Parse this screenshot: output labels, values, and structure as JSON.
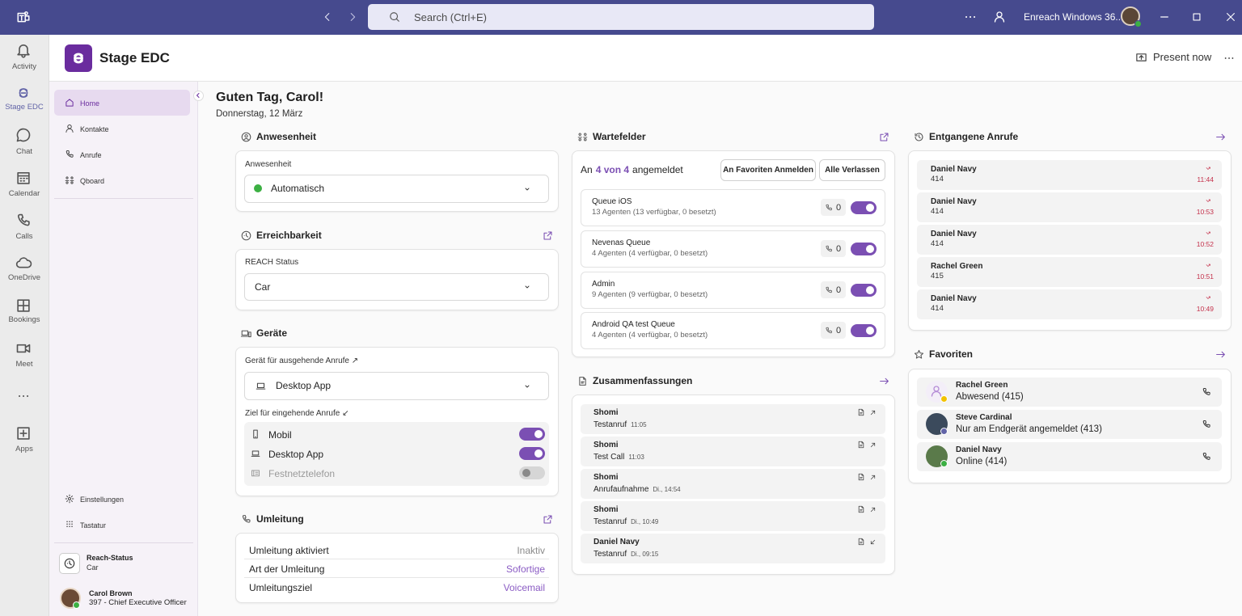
{
  "titlebar": {
    "search": "Search (Ctrl+E)",
    "account": "Enreach Windows 36..."
  },
  "rail": {
    "selected_index": 1,
    "items": [
      "Activity",
      "Stage EDC",
      "Chat",
      "Calendar",
      "Calls",
      "OneDrive",
      "Bookings",
      "Meet",
      "Apps"
    ]
  },
  "app": {
    "title": "Stage EDC",
    "present": "Present now"
  },
  "nav": {
    "selected_index": 0,
    "items": [
      "Home",
      "Kontakte",
      "Anrufe",
      "Qboard"
    ],
    "bottom": [
      "Einstellungen",
      "Tastatur"
    ],
    "reach": {
      "label": "Reach-Status",
      "value": "Car"
    },
    "user": {
      "name": "Carol Brown",
      "detail": "397 - Chief Executive Officer"
    }
  },
  "greeting": {
    "title": "Guten Tag, Carol!",
    "date": "Donnerstag, 12 März"
  },
  "anwesenheit": {
    "title": "Anwesenheit",
    "label": "Anwesenheit",
    "value": "Automatisch"
  },
  "erreichbarkeit": {
    "title": "Erreichbarkeit",
    "label": "REACH Status",
    "value": "Car"
  },
  "geraete": {
    "title": "Geräte",
    "outgoing_label": "Gerät für ausgehende Anrufe ↗",
    "outgoing_value": "Desktop App",
    "incoming_label": "Ziel für eingehende Anrufe ↙",
    "targets": [
      {
        "name": "Mobil",
        "on": true
      },
      {
        "name": "Desktop App",
        "on": true
      },
      {
        "name": "Festnetztelefon",
        "on": false
      }
    ]
  },
  "umleitung": {
    "title": "Umleitung",
    "rows": [
      {
        "label": "Umleitung aktiviert",
        "value": "Inaktiv",
        "color": "#8a8a8a"
      },
      {
        "label": "Art der Umleitung",
        "value": "Sofortige",
        "color": "#8b5cc4"
      },
      {
        "label": "Umleitungsziel",
        "value": "Voicemail",
        "color": "#8b5cc4"
      }
    ]
  },
  "wartefelder": {
    "title": "Wartefelder",
    "status_prefix": "An",
    "status_count": "4 von 4",
    "status_suffix": "angemeldet",
    "buttons": [
      "An Favoriten Anmelden",
      "Alle Verlassen"
    ],
    "queues": [
      {
        "name": "Queue iOS",
        "detail": "13 Agenten (13 verfügbar, 0 besetzt)",
        "calls": 0,
        "on": true
      },
      {
        "name": "Nevenas Queue",
        "detail": "4 Agenten (4 verfügbar, 0 besetzt)",
        "calls": 0,
        "on": true
      },
      {
        "name": "Admin",
        "detail": "9 Agenten (9 verfügbar, 0 besetzt)",
        "calls": 0,
        "on": true
      },
      {
        "name": "Android QA test Queue",
        "detail": "4 Agenten (4 verfügbar, 0 besetzt)",
        "calls": 0,
        "on": true
      }
    ]
  },
  "zusammenfassungen": {
    "title": "Zusammenfassungen",
    "items": [
      {
        "name": "Shomi",
        "subject": "Testanruf",
        "time": "11:05",
        "direction": "out"
      },
      {
        "name": "Shomi",
        "subject": "Test Call",
        "time": "11:03",
        "direction": "out"
      },
      {
        "name": "Shomi",
        "subject": "Anrufaufnahme",
        "time": "Di., 14:54",
        "direction": "out"
      },
      {
        "name": "Shomi",
        "subject": "Testanruf",
        "time": "Di., 10:49",
        "direction": "out"
      },
      {
        "name": "Daniel Navy",
        "subject": "Testanruf",
        "time": "Di., 09:15",
        "direction": "in"
      }
    ]
  },
  "entgangene": {
    "title": "Entgangene Anrufe",
    "items": [
      {
        "name": "Daniel Navy",
        "number": "414",
        "time": "11:44"
      },
      {
        "name": "Daniel Navy",
        "number": "414",
        "time": "10:53"
      },
      {
        "name": "Daniel Navy",
        "number": "414",
        "time": "10:52"
      },
      {
        "name": "Rachel Green",
        "number": "415",
        "time": "10:51"
      },
      {
        "name": "Daniel Navy",
        "number": "414",
        "time": "10:49"
      }
    ]
  },
  "favoriten": {
    "title": "Favoriten",
    "items": [
      {
        "name": "Rachel Green",
        "status": "Abwesend (415)",
        "presence": "#f2c200"
      },
      {
        "name": "Steve Cardinal",
        "status": "Nur am Endgerät angemeldet (413)",
        "presence": "#6264a7"
      },
      {
        "name": "Daniel Navy",
        "status": "Online (414)",
        "presence": "#3cb043"
      }
    ]
  }
}
